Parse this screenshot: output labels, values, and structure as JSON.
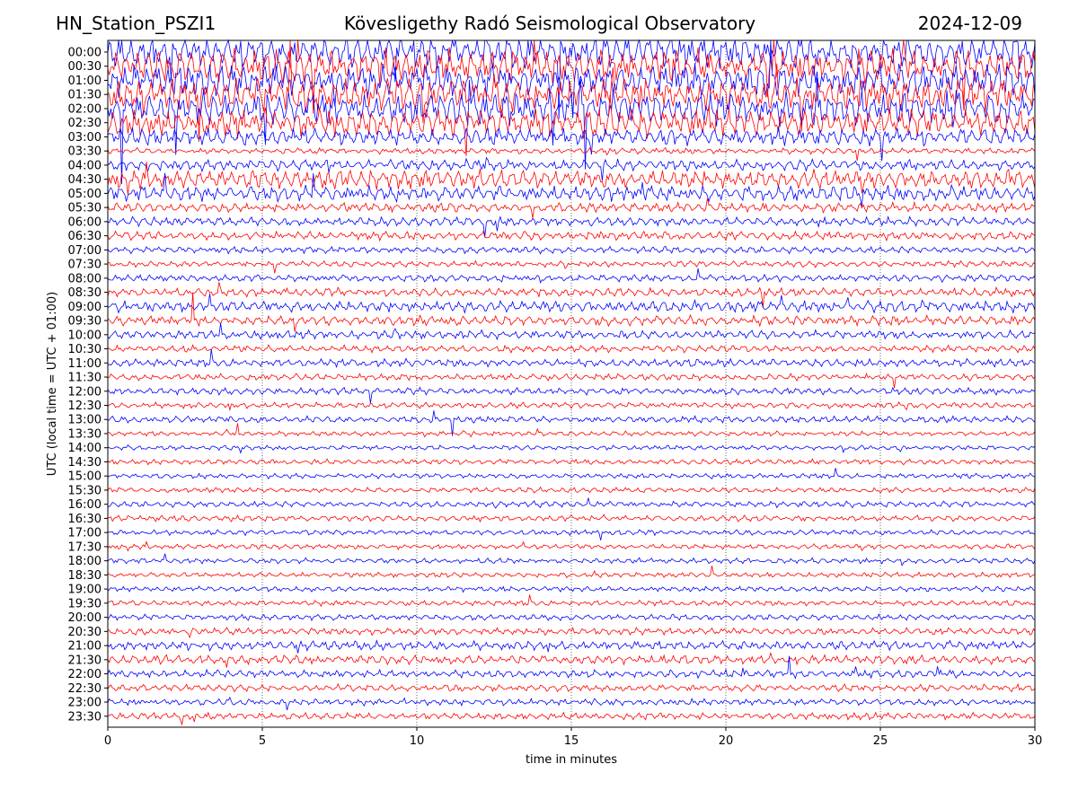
{
  "header": {
    "station": "HN_Station_PSZI1",
    "observatory": "Kövesligethy Radó Seismological Observatory",
    "date": "2024-12-09"
  },
  "chart_data": {
    "type": "line",
    "title": "Kövesligethy Radó Seismological Observatory",
    "xlabel": "time in minutes",
    "ylabel": "UTC (local time = UTC + 01:00)",
    "xlim": [
      0,
      30
    ],
    "x_ticks": [
      "0",
      "5",
      "10",
      "15",
      "20",
      "25",
      "30"
    ],
    "vertical_gridlines_minutes": [
      5,
      10,
      15,
      20,
      25
    ],
    "trace_colors": [
      "#0000ff",
      "#ff0000"
    ],
    "rows": [
      "00:00",
      "00:30",
      "01:00",
      "01:30",
      "02:00",
      "02:30",
      "03:00",
      "03:30",
      "04:00",
      "04:30",
      "05:00",
      "05:30",
      "06:00",
      "06:30",
      "07:00",
      "07:30",
      "08:00",
      "08:30",
      "09:00",
      "09:30",
      "10:00",
      "10:30",
      "11:00",
      "11:30",
      "12:00",
      "12:30",
      "13:00",
      "13:30",
      "14:00",
      "14:30",
      "15:00",
      "15:30",
      "16:00",
      "16:30",
      "17:00",
      "17:30",
      "18:00",
      "18:30",
      "19:00",
      "19:30",
      "20:00",
      "20:30",
      "21:00",
      "21:30",
      "22:00",
      "22:30",
      "23:00",
      "23:30"
    ],
    "row_activity": [
      1,
      1,
      1,
      1,
      1,
      0.85,
      0.5,
      0.12,
      0.28,
      0.55,
      0.42,
      0.22,
      0.22,
      0.2,
      0.15,
      0.12,
      0.15,
      0.2,
      0.3,
      0.25,
      0.2,
      0.15,
      0.18,
      0.15,
      0.15,
      0.12,
      0.14,
      0.08,
      0.08,
      0.1,
      0.09,
      0.1,
      0.12,
      0.12,
      0.1,
      0.1,
      0.1,
      0.09,
      0.1,
      0.1,
      0.12,
      0.15,
      0.22,
      0.22,
      0.18,
      0.15,
      0.14,
      0.15
    ]
  }
}
